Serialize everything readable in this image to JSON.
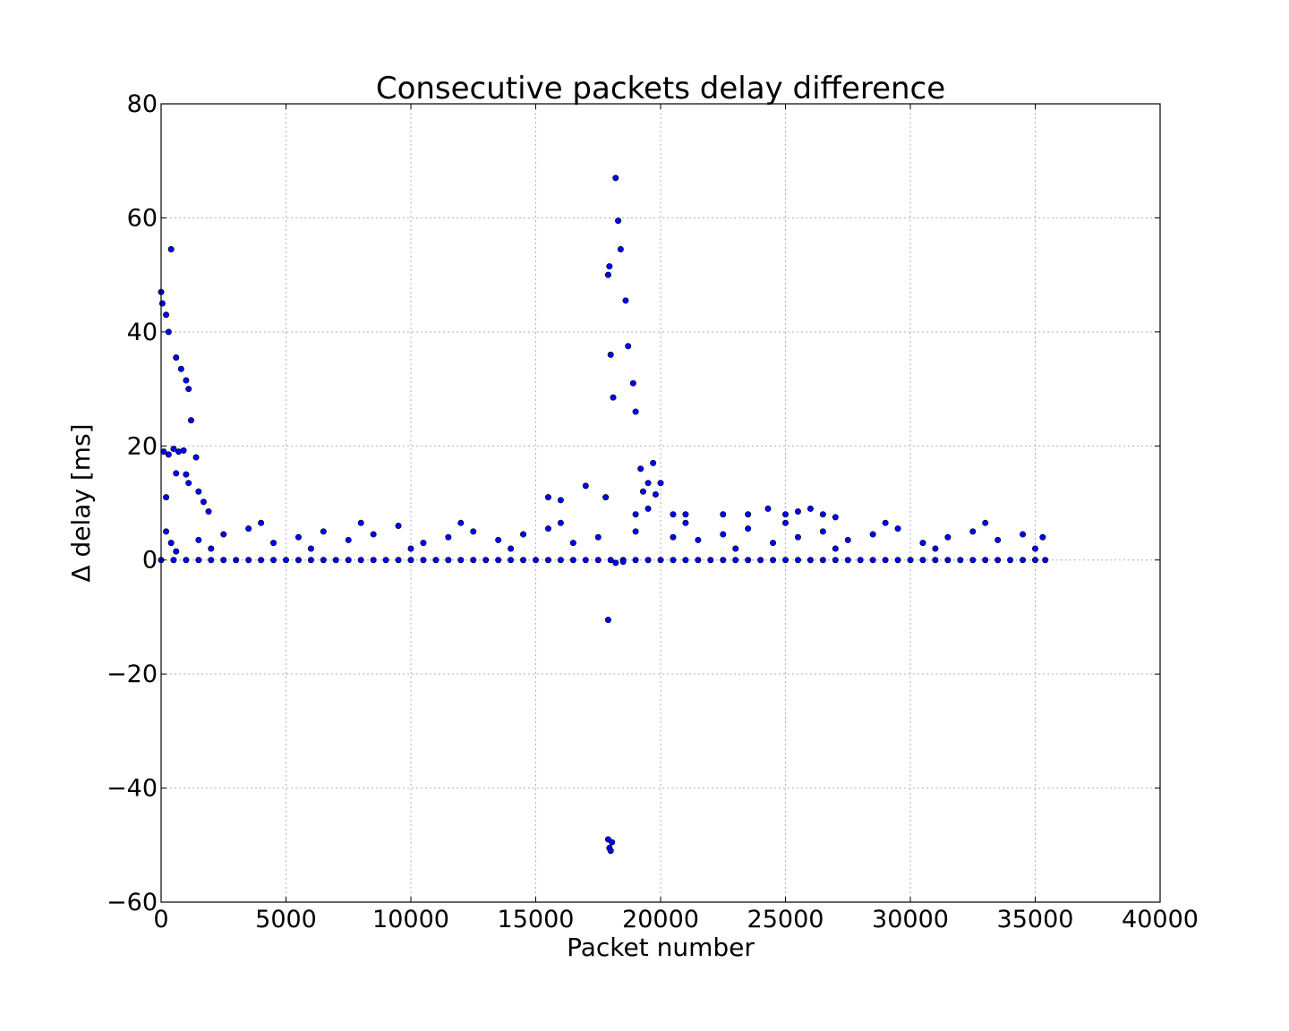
{
  "colors": {
    "marker_fill": "#0000ff",
    "marker_edge": "#000000"
  },
  "chart_data": {
    "type": "scatter",
    "title": "Consecutive packets delay difference",
    "xlabel": "Packet number",
    "ylabel": "Δ delay [ms]",
    "xlim": [
      0,
      40000
    ],
    "ylim": [
      -60,
      80
    ],
    "xticks": [
      0,
      5000,
      10000,
      15000,
      20000,
      25000,
      30000,
      35000,
      40000
    ],
    "yticks": [
      -60,
      -40,
      -20,
      0,
      20,
      40,
      60,
      80
    ],
    "ytick_labels": [
      "−60",
      "−40",
      "−20",
      "0",
      "20",
      "40",
      "60",
      "80"
    ],
    "grid": true,
    "legend": "none",
    "series": [
      {
        "points": [
          [
            0,
            0
          ],
          [
            500,
            0
          ],
          [
            1000,
            0
          ],
          [
            1500,
            0
          ],
          [
            2000,
            0
          ],
          [
            2500,
            0
          ],
          [
            3000,
            0
          ],
          [
            3500,
            0
          ],
          [
            4000,
            0
          ],
          [
            4500,
            0
          ],
          [
            5000,
            0
          ],
          [
            5500,
            0
          ],
          [
            6000,
            0
          ],
          [
            6500,
            0
          ],
          [
            7000,
            0
          ],
          [
            7500,
            0
          ],
          [
            8000,
            0
          ],
          [
            8500,
            0
          ],
          [
            9000,
            0
          ],
          [
            9500,
            0
          ],
          [
            10000,
            0
          ],
          [
            10500,
            0
          ],
          [
            11000,
            0
          ],
          [
            11500,
            0
          ],
          [
            12000,
            0
          ],
          [
            12500,
            0
          ],
          [
            13000,
            0
          ],
          [
            13500,
            0
          ],
          [
            14000,
            0
          ],
          [
            14500,
            0
          ],
          [
            15000,
            0
          ],
          [
            15500,
            0
          ],
          [
            16000,
            0
          ],
          [
            16500,
            0
          ],
          [
            17000,
            0
          ],
          [
            17500,
            0
          ],
          [
            18000,
            0
          ],
          [
            18500,
            0
          ],
          [
            19000,
            0
          ],
          [
            19500,
            0
          ],
          [
            20000,
            0
          ],
          [
            20500,
            0
          ],
          [
            21000,
            0
          ],
          [
            21500,
            0
          ],
          [
            22000,
            0
          ],
          [
            22500,
            0
          ],
          [
            23000,
            0
          ],
          [
            23500,
            0
          ],
          [
            24000,
            0
          ],
          [
            24500,
            0
          ],
          [
            25000,
            0
          ],
          [
            25500,
            0
          ],
          [
            26000,
            0
          ],
          [
            26500,
            0
          ],
          [
            27000,
            0
          ],
          [
            27500,
            0
          ],
          [
            28000,
            0
          ],
          [
            28500,
            0
          ],
          [
            29000,
            0
          ],
          [
            29500,
            0
          ],
          [
            30000,
            0
          ],
          [
            30500,
            0
          ],
          [
            31000,
            0
          ],
          [
            31500,
            0
          ],
          [
            32000,
            0
          ],
          [
            32500,
            0
          ],
          [
            33000,
            0
          ],
          [
            33500,
            0
          ],
          [
            34000,
            0
          ],
          [
            34500,
            0
          ],
          [
            35000,
            0
          ],
          [
            35400,
            0
          ],
          [
            1500,
            3.5
          ],
          [
            2500,
            4.5
          ],
          [
            3500,
            5.5
          ],
          [
            4500,
            3
          ],
          [
            5500,
            4
          ],
          [
            6500,
            5
          ],
          [
            7500,
            3.5
          ],
          [
            8500,
            4.5
          ],
          [
            9500,
            6
          ],
          [
            10500,
            3
          ],
          [
            11500,
            4
          ],
          [
            12500,
            5
          ],
          [
            13500,
            3.5
          ],
          [
            14500,
            4.5
          ],
          [
            15500,
            5.5
          ],
          [
            16500,
            3
          ],
          [
            17500,
            4
          ],
          [
            19000,
            5
          ],
          [
            20500,
            4
          ],
          [
            21500,
            3.5
          ],
          [
            22500,
            4.5
          ],
          [
            23500,
            5.5
          ],
          [
            24500,
            3
          ],
          [
            25500,
            4
          ],
          [
            26500,
            5
          ],
          [
            27500,
            3.5
          ],
          [
            28500,
            4.5
          ],
          [
            29500,
            5.5
          ],
          [
            30500,
            3
          ],
          [
            31500,
            4
          ],
          [
            32500,
            5
          ],
          [
            33500,
            3.5
          ],
          [
            34500,
            4.5
          ],
          [
            35300,
            4
          ],
          [
            2000,
            2
          ],
          [
            4000,
            6.5
          ],
          [
            6000,
            2
          ],
          [
            8000,
            6.5
          ],
          [
            10000,
            2
          ],
          [
            12000,
            6.5
          ],
          [
            14000,
            2
          ],
          [
            16000,
            6.5
          ],
          [
            21000,
            6.5
          ],
          [
            23000,
            2
          ],
          [
            25000,
            6.5
          ],
          [
            27000,
            2
          ],
          [
            29000,
            6.5
          ],
          [
            31000,
            2
          ],
          [
            33000,
            6.5
          ],
          [
            35000,
            2
          ],
          [
            0,
            47
          ],
          [
            50,
            45
          ],
          [
            200,
            43
          ],
          [
            300,
            40
          ],
          [
            400,
            54.5
          ],
          [
            600,
            35.5
          ],
          [
            800,
            33.5
          ],
          [
            1000,
            31.5
          ],
          [
            1100,
            30
          ],
          [
            1200,
            24.5
          ],
          [
            1400,
            18
          ],
          [
            100,
            19
          ],
          [
            300,
            18.5
          ],
          [
            500,
            19.5
          ],
          [
            700,
            19
          ],
          [
            900,
            19.2
          ],
          [
            600,
            15.2
          ],
          [
            1000,
            15
          ],
          [
            200,
            11
          ],
          [
            1100,
            13.5
          ],
          [
            1500,
            12
          ],
          [
            1700,
            10.2
          ],
          [
            1900,
            8.5
          ],
          [
            200,
            5
          ],
          [
            400,
            3
          ],
          [
            600,
            1.5
          ],
          [
            15500,
            11
          ],
          [
            16000,
            10.5
          ],
          [
            17000,
            13
          ],
          [
            17800,
            11
          ],
          [
            17900,
            50
          ],
          [
            17950,
            51.5
          ],
          [
            18000,
            36
          ],
          [
            18100,
            28.5
          ],
          [
            18200,
            67
          ],
          [
            18300,
            59.5
          ],
          [
            18400,
            54.5
          ],
          [
            18600,
            45.5
          ],
          [
            18700,
            37.5
          ],
          [
            18900,
            31
          ],
          [
            19000,
            26
          ],
          [
            19200,
            16
          ],
          [
            19300,
            12
          ],
          [
            19500,
            13.5
          ],
          [
            19700,
            17
          ],
          [
            19800,
            11.5
          ],
          [
            20000,
            13.5
          ],
          [
            19000,
            8
          ],
          [
            19500,
            9
          ],
          [
            20500,
            8
          ],
          [
            21000,
            8
          ],
          [
            22500,
            8
          ],
          [
            23500,
            8
          ],
          [
            24300,
            9
          ],
          [
            25000,
            8
          ],
          [
            25500,
            8.5
          ],
          [
            26000,
            9
          ],
          [
            26500,
            8
          ],
          [
            27000,
            7.5
          ],
          [
            17900,
            -10.5
          ],
          [
            17900,
            -49
          ],
          [
            17950,
            -50.5
          ],
          [
            18000,
            -51
          ],
          [
            18050,
            -49.5
          ],
          [
            18200,
            -0.5
          ],
          [
            18500,
            -0.3
          ]
        ]
      }
    ]
  }
}
